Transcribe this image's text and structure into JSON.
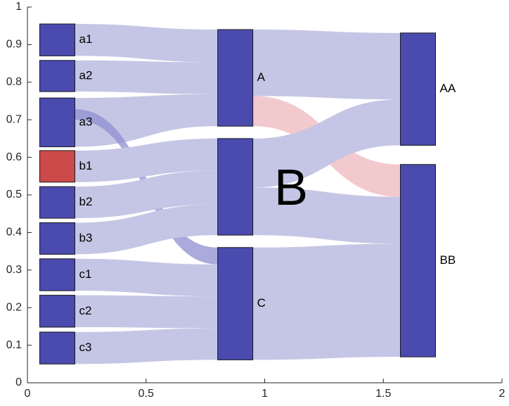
{
  "chart_data": {
    "type": "sankey",
    "xlim": [
      0,
      2
    ],
    "ylim": [
      0,
      1
    ],
    "x_ticks": [
      "0",
      "0.5",
      "1",
      "1.5",
      "2"
    ],
    "y_ticks": [
      "0",
      "0.1",
      "0.2",
      "0.3",
      "0.4",
      "0.5",
      "0.6",
      "0.7",
      "0.8",
      "0.9",
      "1"
    ],
    "annotation": "B",
    "colors": {
      "node": "#4a4aaf",
      "node_highlight": "#cc4a4a",
      "link": "#c5c6e5",
      "link_highlight": "#f1c4c8",
      "link_mid": "#8e8fd0"
    },
    "columns": [
      {
        "x": 0.2,
        "nodes": [
          {
            "label": "a1",
            "y": [
              0.87,
              0.955
            ]
          },
          {
            "label": "a2",
            "y": [
              0.775,
              0.858
            ]
          },
          {
            "label": "a3",
            "y": [
              0.628,
              0.758
            ]
          },
          {
            "label": "b1",
            "y": [
              0.534,
              0.618
            ],
            "highlight": true
          },
          {
            "label": "b2",
            "y": [
              0.438,
              0.522
            ]
          },
          {
            "label": "b3",
            "y": [
              0.342,
              0.426
            ]
          },
          {
            "label": "c1",
            "y": [
              0.245,
              0.33
            ]
          },
          {
            "label": "c2",
            "y": [
              0.148,
              0.233
            ]
          },
          {
            "label": "c3",
            "y": [
              0.05,
              0.135
            ]
          }
        ]
      },
      {
        "x": 0.95,
        "nodes": [
          {
            "label": "A",
            "y": [
              0.683,
              0.94
            ]
          },
          {
            "label": "",
            "y": [
              0.393,
              0.65
            ]
          },
          {
            "label": "C",
            "y": [
              0.061,
              0.36
            ]
          }
        ]
      },
      {
        "x": 1.72,
        "nodes": [
          {
            "label": "AA",
            "y": [
              0.632,
              0.931
            ]
          },
          {
            "label": "BB",
            "y": [
              0.069,
              0.581
            ]
          }
        ]
      }
    ],
    "links": [
      {
        "source": "a1",
        "target": "A",
        "src_y": [
          0.87,
          0.955
        ],
        "dst_y": [
          0.853,
          0.94
        ]
      },
      {
        "source": "a2",
        "target": "A",
        "src_y": [
          0.775,
          0.858
        ],
        "dst_y": [
          0.768,
          0.853
        ]
      },
      {
        "source": "a3",
        "target": "A",
        "src_y": [
          0.628,
          0.758
        ],
        "dst_y": [
          0.683,
          0.768
        ]
      },
      {
        "source": "a3",
        "target": "C",
        "src_y": [
          0.7,
          0.728
        ],
        "dst_y": [
          0.315,
          0.36
        ],
        "mid": true
      },
      {
        "source": "b1",
        "target": "B",
        "src_y": [
          0.534,
          0.618
        ],
        "dst_y": [
          0.565,
          0.65
        ]
      },
      {
        "source": "b2",
        "target": "B",
        "src_y": [
          0.438,
          0.522
        ],
        "dst_y": [
          0.475,
          0.565
        ]
      },
      {
        "source": "b3",
        "target": "B",
        "src_y": [
          0.342,
          0.426
        ],
        "dst_y": [
          0.393,
          0.475
        ]
      },
      {
        "source": "c1",
        "target": "C",
        "src_y": [
          0.245,
          0.33
        ],
        "dst_y": [
          0.23,
          0.315
        ]
      },
      {
        "source": "c2",
        "target": "C",
        "src_y": [
          0.148,
          0.233
        ],
        "dst_y": [
          0.145,
          0.23
        ]
      },
      {
        "source": "c3",
        "target": "C",
        "src_y": [
          0.05,
          0.135
        ],
        "dst_y": [
          0.061,
          0.145
        ]
      },
      {
        "source": "A",
        "target": "AA",
        "src_y": [
          0.763,
          0.94
        ],
        "dst_y": [
          0.754,
          0.931
        ]
      },
      {
        "source": "A",
        "target": "BB",
        "src_y": [
          0.683,
          0.763
        ],
        "dst_y": [
          0.495,
          0.581
        ],
        "highlight": true
      },
      {
        "source": "B",
        "target": "AA",
        "src_y": [
          0.52,
          0.65
        ],
        "dst_y": [
          0.632,
          0.754
        ]
      },
      {
        "source": "B",
        "target": "BB",
        "src_y": [
          0.393,
          0.52
        ],
        "dst_y": [
          0.37,
          0.495
        ]
      },
      {
        "source": "C",
        "target": "BB",
        "src_y": [
          0.061,
          0.36
        ],
        "dst_y": [
          0.069,
          0.37
        ]
      }
    ]
  }
}
